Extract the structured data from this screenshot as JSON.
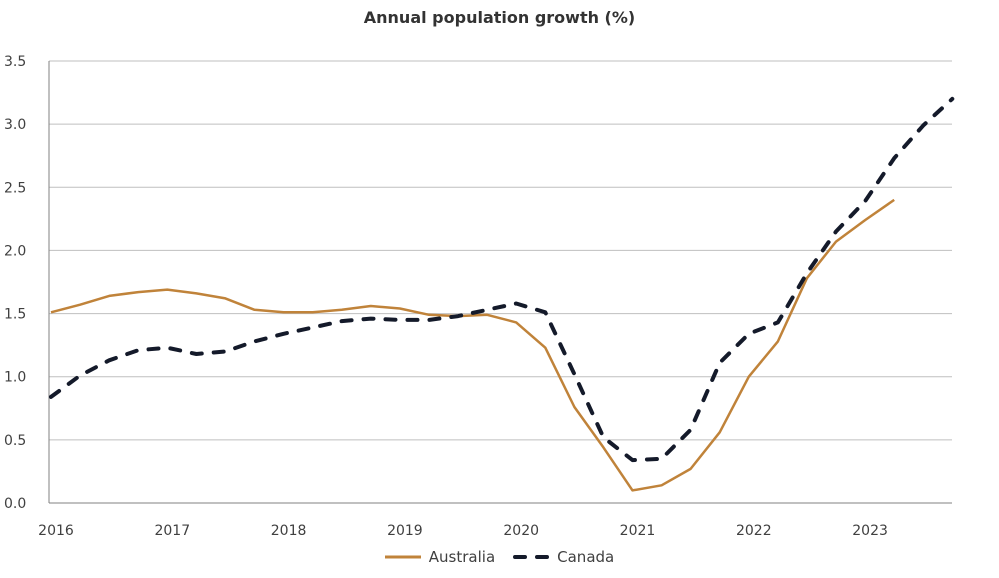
{
  "chart_data": {
    "type": "line",
    "title": "Annual population growth (%)",
    "xlabel": "",
    "ylabel": "",
    "ylim": [
      0,
      3.5
    ],
    "yticks": [
      "0.0",
      "0.5",
      "1.0",
      "1.5",
      "2.0",
      "2.5",
      "3.0",
      "3.5"
    ],
    "ytick_values": [
      0,
      0.5,
      1,
      1.5,
      2,
      2.5,
      3,
      3.5
    ],
    "xticks": [
      "2016",
      "2017",
      "2018",
      "2019",
      "2020",
      "2021",
      "2022",
      "2023"
    ],
    "xlim": [
      2016.0,
      2023.95
    ],
    "grid": "horizontal",
    "legend_position": "bottom",
    "series": [
      {
        "name": "Australia",
        "color": "#C0833A",
        "style": "solid",
        "x_start": 2016.0,
        "x_step": 0.25,
        "values": [
          1.51,
          1.57,
          1.64,
          1.67,
          1.69,
          1.66,
          1.62,
          1.53,
          1.51,
          1.51,
          1.53,
          1.56,
          1.54,
          1.49,
          1.48,
          1.49,
          1.43,
          1.23,
          0.76,
          0.44,
          0.1,
          0.14,
          0.27,
          0.56,
          1.0,
          1.28,
          1.78,
          2.07,
          2.24,
          2.4
        ]
      },
      {
        "name": "Canada",
        "color": "#141A2A",
        "style": "dashed",
        "x_start": 2016.0,
        "x_step": 0.25,
        "values": [
          0.84,
          1.01,
          1.13,
          1.21,
          1.23,
          1.18,
          1.2,
          1.28,
          1.34,
          1.39,
          1.44,
          1.46,
          1.45,
          1.45,
          1.48,
          1.53,
          1.58,
          1.51,
          1.02,
          0.52,
          0.34,
          0.35,
          0.58,
          1.11,
          1.34,
          1.43,
          1.82,
          2.15,
          2.39,
          2.73,
          2.99,
          3.2
        ]
      }
    ]
  }
}
